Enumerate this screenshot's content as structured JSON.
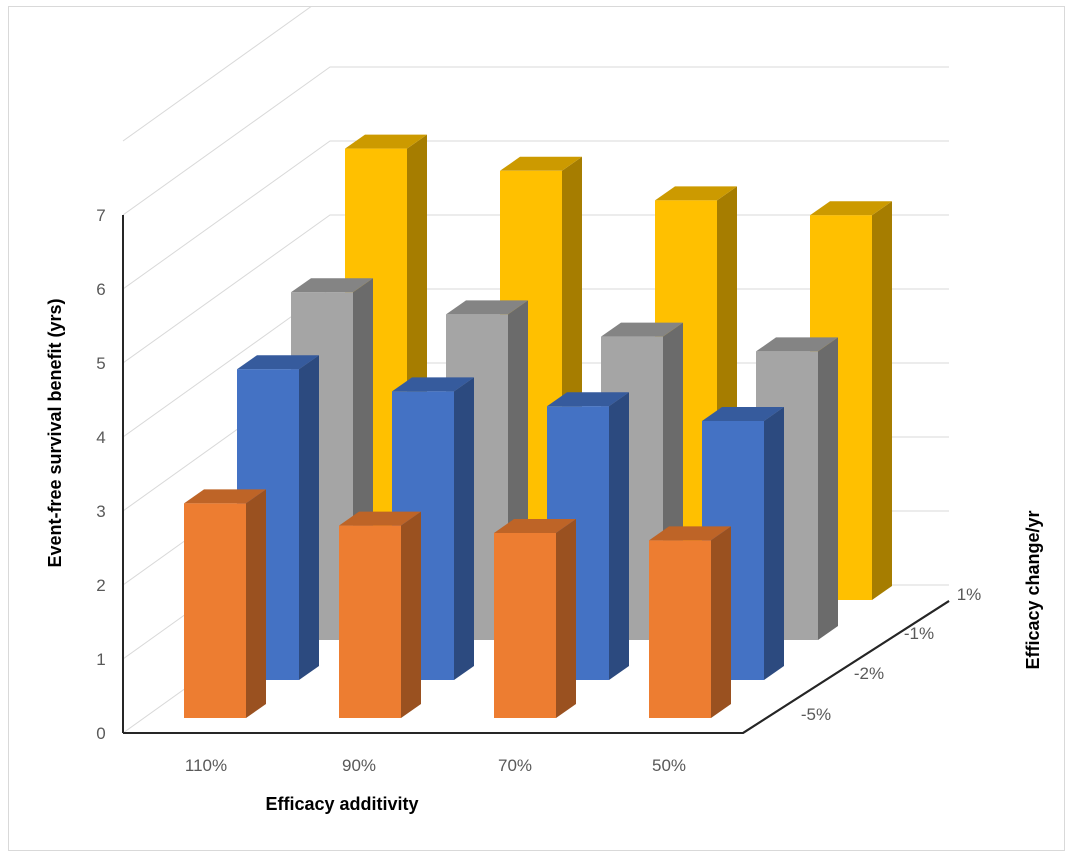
{
  "chart_data": {
    "type": "bar",
    "title": "",
    "xlabel": "Efficacy additivity",
    "ylabel": "Event-free survival benefit (yrs)",
    "zlabel": "Efficacy change/yr",
    "categories": [
      "110%",
      "90%",
      "70%",
      "50%"
    ],
    "series": [
      {
        "name": "-5%",
        "values": [
          2.9,
          2.6,
          2.5,
          2.4
        ]
      },
      {
        "name": "-2%",
        "values": [
          4.2,
          3.9,
          3.7,
          3.5
        ]
      },
      {
        "name": "-1%",
        "values": [
          4.7,
          4.4,
          4.1,
          3.9
        ]
      },
      {
        "name": "1%",
        "values": [
          6.1,
          5.8,
          5.4,
          5.2
        ]
      }
    ],
    "ylim": [
      0,
      7
    ],
    "y_ticks": [
      "0",
      "1",
      "2",
      "3",
      "4",
      "5",
      "6",
      "7"
    ],
    "grid": true,
    "colors": {
      "-5%": "#ED7D31",
      "-2%": "#4472C4",
      "-1%": "#A5A5A5",
      "1%": "#FFC000"
    }
  }
}
